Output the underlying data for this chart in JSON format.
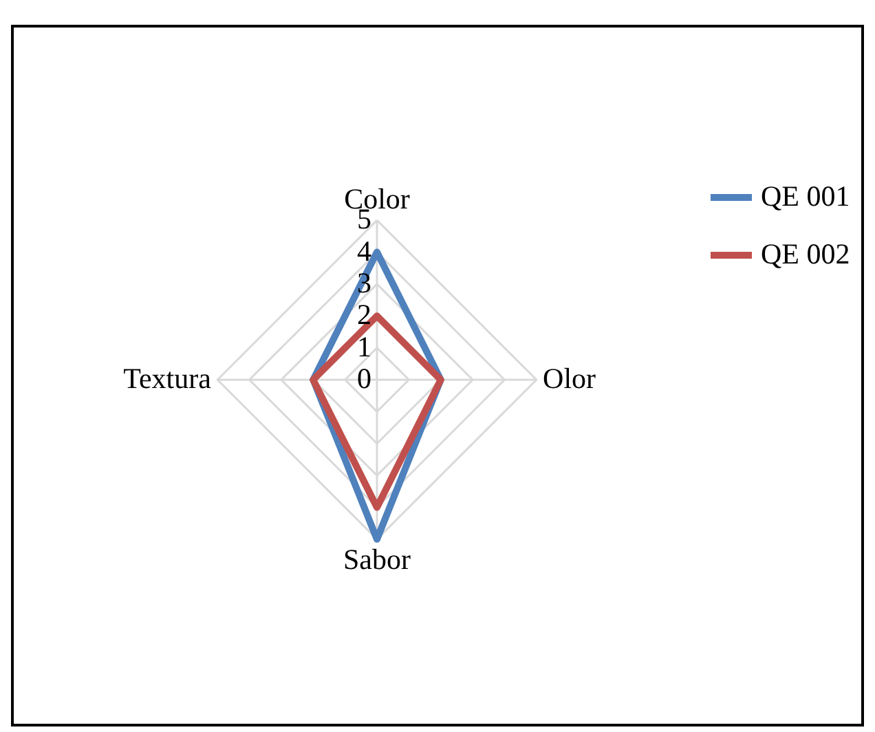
{
  "chart_data": {
    "type": "radar",
    "categories": [
      "Color",
      "Olor",
      "Sabor",
      "Textura"
    ],
    "series": [
      {
        "name": "QE 001",
        "color": "#4f81bd",
        "values": [
          4,
          2,
          5,
          2
        ]
      },
      {
        "name": "QE 002",
        "color": "#c0504d",
        "values": [
          2,
          2,
          4,
          2
        ]
      }
    ],
    "ylim": [
      0,
      5
    ],
    "yticks": [
      0,
      1,
      2,
      3,
      4,
      5
    ],
    "grid": true,
    "legend": "right"
  }
}
